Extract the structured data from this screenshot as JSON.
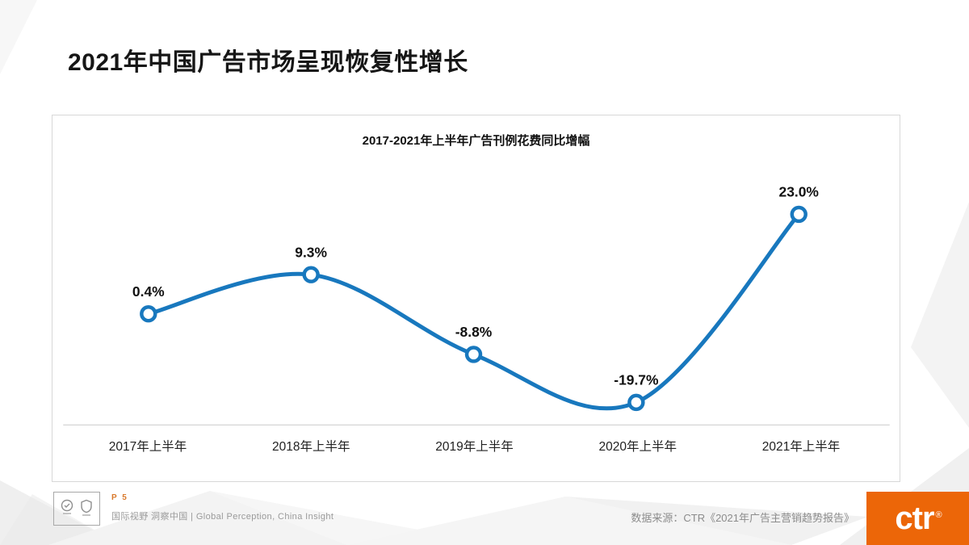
{
  "slide": {
    "title": "2021年中国广告市场呈现恢复性增长"
  },
  "chart_data": {
    "type": "line",
    "title": "2017-2021年上半年广告刊例花费同比增幅",
    "categories": [
      "2017年上半年",
      "2018年上半年",
      "2019年上半年",
      "2020年上半年",
      "2021年上半年"
    ],
    "values": [
      0.4,
      9.3,
      -8.8,
      -19.7,
      23.0
    ],
    "point_labels": [
      "0.4%",
      "9.3%",
      "-8.8%",
      "-19.7%",
      "23.0%"
    ],
    "ylim": [
      -25,
      30
    ],
    "grid": false,
    "legend": false,
    "line_color": "#1878BE",
    "marker_fill": "#FFFFFF",
    "label_color": "#111111",
    "axis_color": "#C9C9C9"
  },
  "footer": {
    "page_label": "P 5",
    "tagline": "国际视野 洞察中国 |  Global Perception,  China Insight",
    "source": "数据来源：CTR《2021年广告主营销趋势报告》",
    "logo_text": "ctr",
    "logo_registered": "®",
    "brand_color": "#EC6608"
  }
}
